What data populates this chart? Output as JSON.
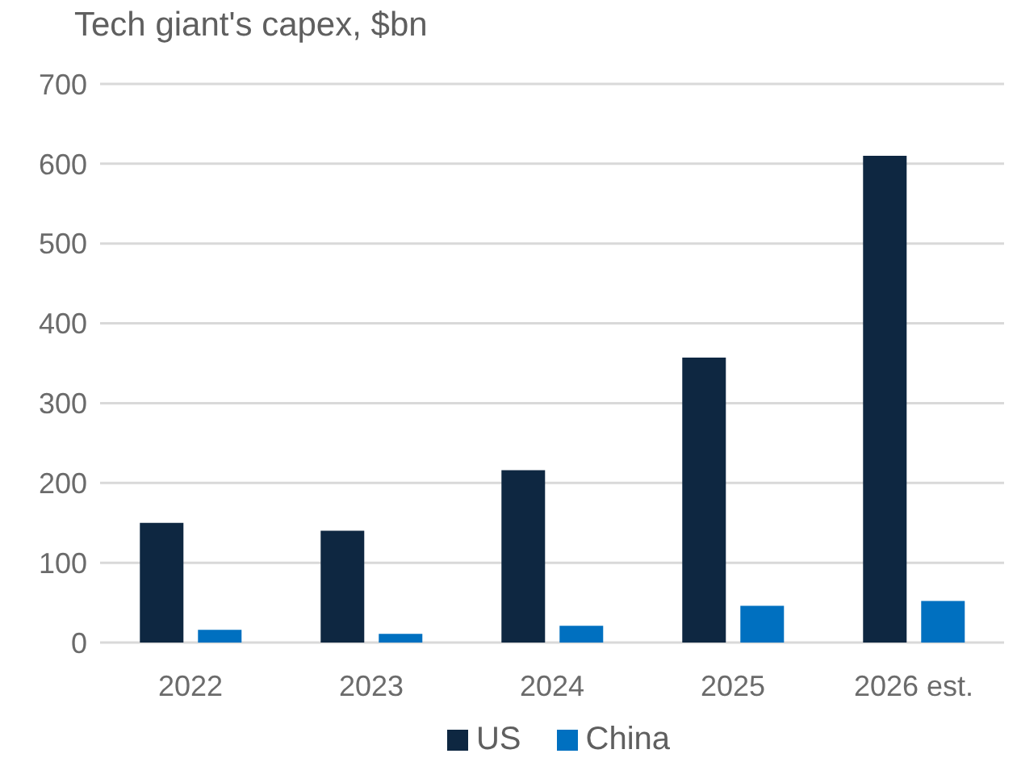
{
  "chart_data": {
    "type": "bar",
    "title": "Tech giant's capex, $bn",
    "categories": [
      "2022",
      "2023",
      "2024",
      "2025",
      "2026 est."
    ],
    "series": [
      {
        "name": "US",
        "color": "#0e2741",
        "values": [
          150,
          140,
          216,
          357,
          610
        ]
      },
      {
        "name": "China",
        "color": "#0070c0",
        "values": [
          16,
          11,
          21,
          46,
          52
        ]
      }
    ],
    "ylim": [
      0,
      700
    ],
    "yticks": [
      0,
      100,
      200,
      300,
      400,
      500,
      600,
      700
    ],
    "grid": "y",
    "legend": "bottom"
  }
}
